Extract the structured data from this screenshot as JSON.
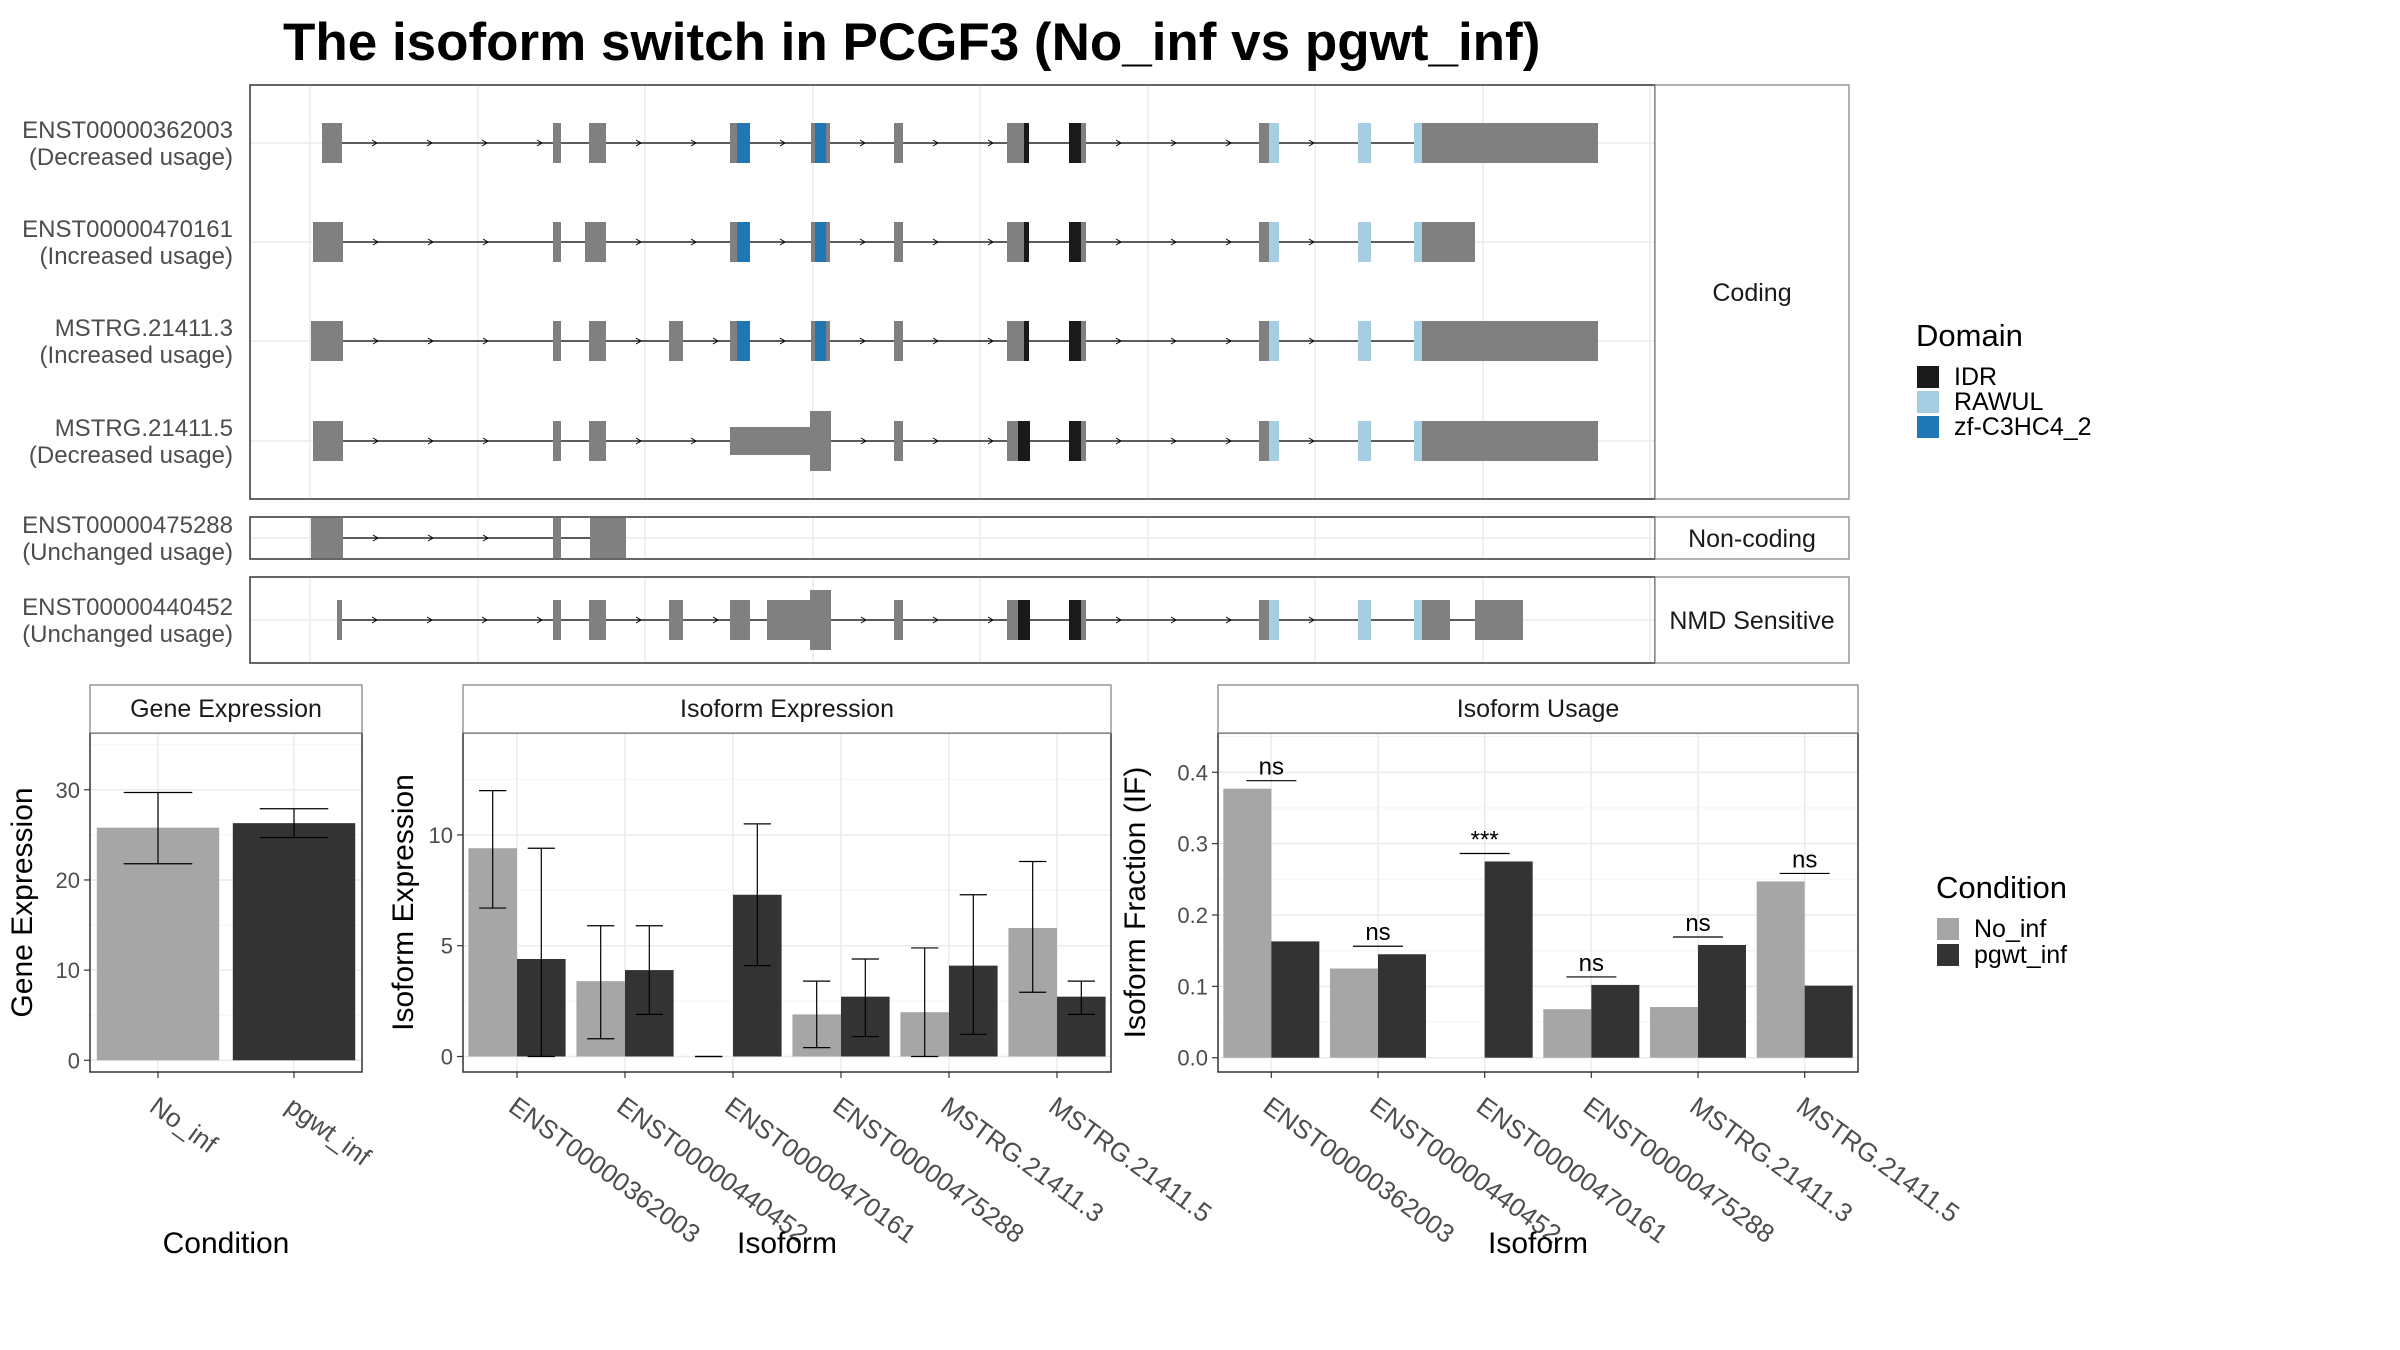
{
  "title": "The isoform switch in PCGF3 (No_inf vs pgwt_inf)",
  "chart_data": [
    {
      "type": "gene-structure",
      "name": "Transcript structures",
      "categories": [
        "Coding",
        "Non-coding",
        "NMD Sensitive"
      ],
      "transcripts": [
        {
          "id": "ENST00000362003",
          "usage": "(Decreased usage)",
          "category": "Coding"
        },
        {
          "id": "ENST00000470161",
          "usage": "(Increased usage)",
          "category": "Coding"
        },
        {
          "id": "MSTRG.21411.3",
          "usage": "(Increased usage)",
          "category": "Coding"
        },
        {
          "id": "MSTRG.21411.5",
          "usage": "(Decreased usage)",
          "category": "Coding"
        },
        {
          "id": "ENST00000475288",
          "usage": "(Unchanged usage)",
          "category": "Non-coding"
        },
        {
          "id": "ENST00000440452",
          "usage": "(Unchanged usage)",
          "category": "NMD Sensitive"
        }
      ],
      "legend": {
        "title": "Domain",
        "items": [
          {
            "name": "IDR",
            "color": "#1a1a1a"
          },
          {
            "name": "RAWUL",
            "color": "#a6cee3"
          },
          {
            "name": "zf-C3HC4_2",
            "color": "#1f78b4"
          }
        ]
      },
      "exon_color": "#808080"
    },
    {
      "type": "bar",
      "title": "Gene Expression",
      "xlabel": "Condition",
      "ylabel": "Gene Expression",
      "categories": [
        "No_inf",
        "pgwt_inf"
      ],
      "values": [
        25.8,
        26.3
      ],
      "errors": [
        [
          21.8,
          29.7
        ],
        [
          24.7,
          27.9
        ]
      ],
      "colors": [
        "#a6a6a6",
        "#333333"
      ],
      "ylim": [
        -1.3,
        36.3
      ],
      "yticks": [
        0,
        10,
        20,
        30
      ],
      "grid": true
    },
    {
      "type": "bar",
      "title": "Isoform Expression",
      "xlabel": "Isoform",
      "ylabel": "Isoform Expression",
      "categories": [
        "ENST00000362003",
        "ENST00000440452",
        "ENST00000470161",
        "ENST00000475288",
        "MSTRG.21411.3",
        "MSTRG.21411.5"
      ],
      "series": [
        {
          "name": "No_inf",
          "color": "#a6a6a6",
          "values": [
            9.4,
            3.4,
            0.0,
            1.9,
            2.0,
            5.8
          ],
          "errors": [
            [
              6.7,
              12.0
            ],
            [
              0.8,
              5.9
            ],
            [
              0.0,
              0.0
            ],
            [
              0.4,
              3.4
            ],
            [
              0.0,
              4.9
            ],
            [
              2.9,
              8.8
            ]
          ]
        },
        {
          "name": "pgwt_inf",
          "color": "#333333",
          "values": [
            4.4,
            3.9,
            7.3,
            2.7,
            4.1,
            2.7
          ],
          "errors": [
            [
              0.0,
              9.4
            ],
            [
              1.9,
              5.9
            ],
            [
              4.1,
              10.5
            ],
            [
              0.9,
              4.4
            ],
            [
              1.0,
              7.3
            ],
            [
              1.9,
              3.4
            ]
          ]
        }
      ],
      "ylim": [
        -0.7,
        14.6
      ],
      "yticks": [
        0,
        5,
        10
      ],
      "grid": true
    },
    {
      "type": "bar",
      "title": "Isoform Usage",
      "xlabel": "Isoform",
      "ylabel": "Isoform Fraction (IF)",
      "categories": [
        "ENST00000362003",
        "ENST00000440452",
        "ENST00000470161",
        "ENST00000475288",
        "MSTRG.21411.3",
        "MSTRG.21411.5"
      ],
      "series": [
        {
          "name": "No_inf",
          "color": "#a6a6a6",
          "values": [
            0.377,
            0.125,
            0.0,
            0.068,
            0.071,
            0.247
          ]
        },
        {
          "name": "pgwt_inf",
          "color": "#333333",
          "values": [
            0.163,
            0.145,
            0.275,
            0.102,
            0.158,
            0.101
          ]
        }
      ],
      "significance": [
        "ns",
        "ns",
        "***",
        "ns",
        "ns",
        "ns"
      ],
      "ylim": [
        -0.02,
        0.455
      ],
      "yticks": [
        0.0,
        0.1,
        0.2,
        0.3,
        0.4
      ],
      "grid": true
    }
  ],
  "condition_legend": {
    "title": "Condition",
    "items": [
      {
        "name": "No_inf",
        "color": "#a6a6a6"
      },
      {
        "name": "pgwt_inf",
        "color": "#333333"
      }
    ]
  }
}
